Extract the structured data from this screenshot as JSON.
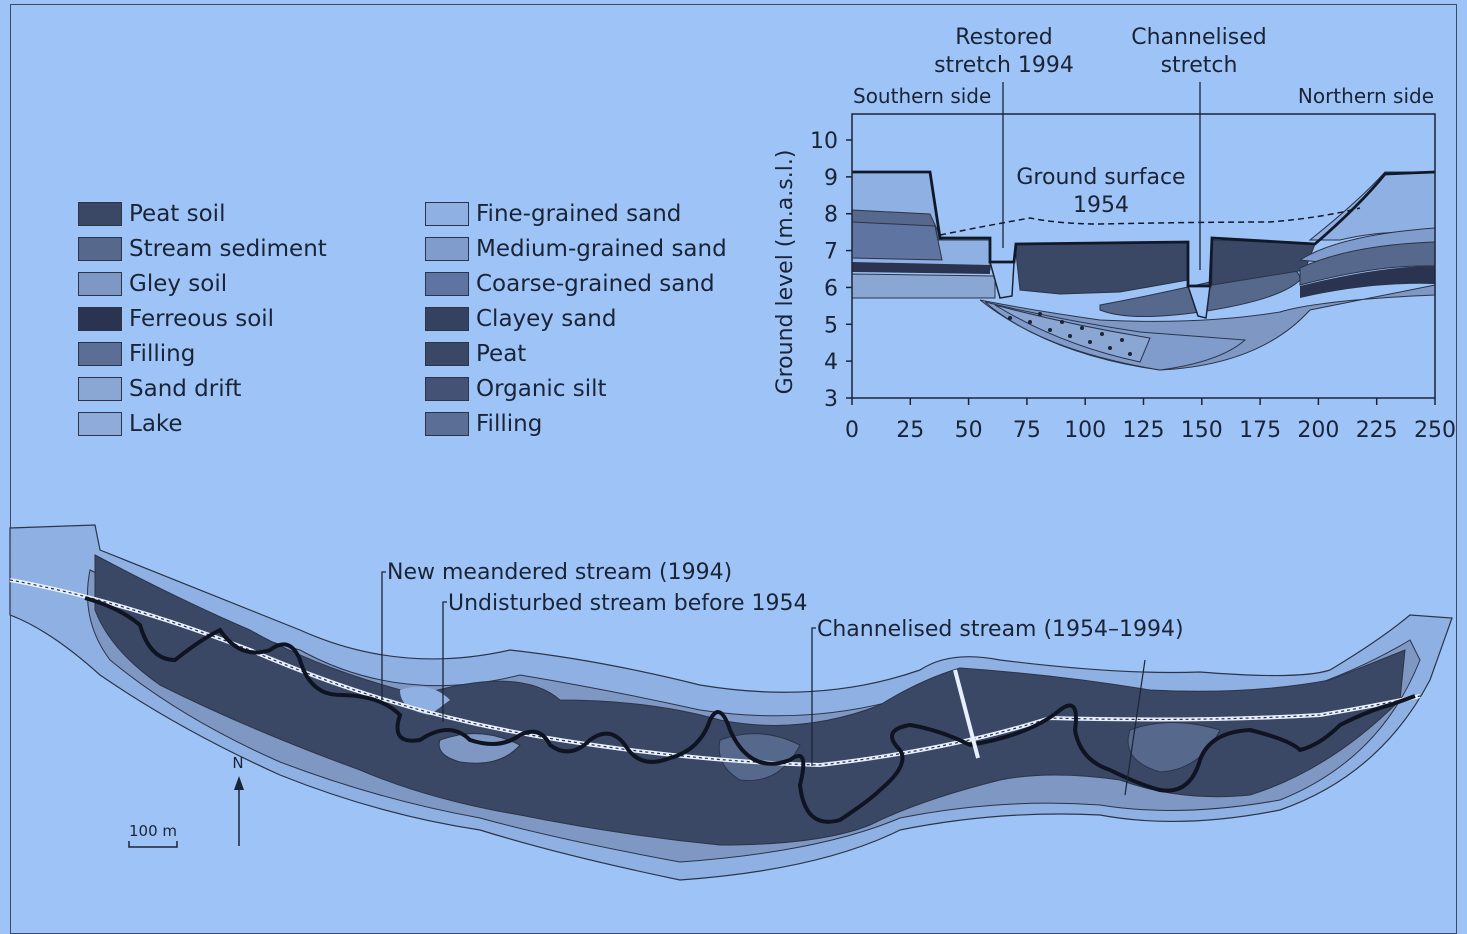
{
  "legend": {
    "left_column": [
      {
        "label": "Peat soil",
        "color": "#3a4866"
      },
      {
        "label": "Stream sediment",
        "color": "#56688c"
      },
      {
        "label": "Gley soil",
        "color": "#7e97c3"
      },
      {
        "label": "Ferreous soil",
        "color": "#2a3450"
      },
      {
        "label": "Filling",
        "color": "#5a6e96"
      },
      {
        "label": "Sand drift",
        "color": "#8aa6d3"
      },
      {
        "label": "Lake",
        "color": "#8eabd9"
      }
    ],
    "right_column": [
      {
        "label": "Fine-grained sand",
        "color": "#8fb0e2"
      },
      {
        "label": "Medium-grained sand",
        "color": "#7f9ccd"
      },
      {
        "label": "Coarse-grained sand",
        "color": "#5f74a0"
      },
      {
        "label": "Clayey sand",
        "color": "#344260"
      },
      {
        "label": "Peat",
        "color": "#3a4866"
      },
      {
        "label": "Organic silt",
        "color": "#435275"
      },
      {
        "label": "Filling",
        "color": "#5a6e96"
      }
    ]
  },
  "cross_section": {
    "annotations": {
      "restored_line1": "Restored",
      "restored_line2": "stretch 1994",
      "channelised_line1": "Channelised",
      "channelised_line2": "stretch",
      "southern": "Southern side",
      "northern": "Northern side",
      "ground_line1": "Ground surface",
      "ground_line2": "1954"
    },
    "ylabel": "Ground level (m.a.s.l.)",
    "y_ticks": [
      "3",
      "4",
      "5",
      "6",
      "7",
      "8",
      "9",
      "10"
    ],
    "x_ticks": [
      "0",
      "25",
      "50",
      "75",
      "100",
      "125",
      "150",
      "175",
      "200",
      "225",
      "250"
    ]
  },
  "map": {
    "labels": {
      "new_stream": "New meandered stream (1994)",
      "undisturbed": "Undisturbed stream before 1954",
      "channelised": "Channelised stream (1954–1994)"
    },
    "north": "N",
    "scale": "100 m"
  }
}
